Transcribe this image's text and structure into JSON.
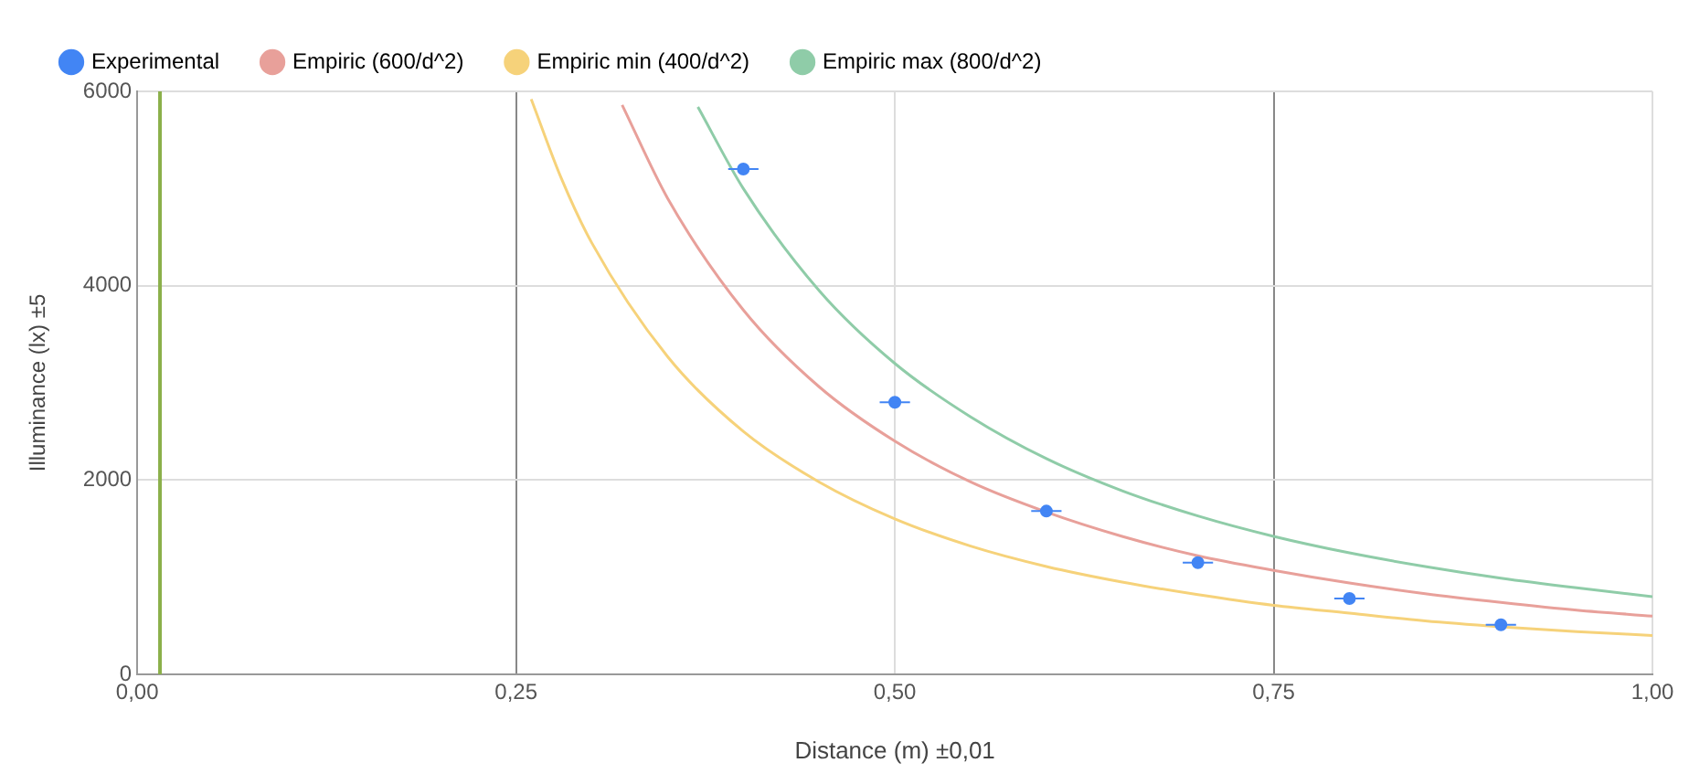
{
  "chart_data": {
    "type": "scatter",
    "xlabel": "Distance (m) ±0,01",
    "ylabel": "Illuminance (lx) ±5",
    "legend": "top",
    "grid": true,
    "xlim": [
      0,
      1
    ],
    "xticks": [
      {
        "value": 0,
        "label": "0,00"
      },
      {
        "value": 0.25,
        "label": "0,25"
      },
      {
        "value": 0.5,
        "label": "0,50"
      },
      {
        "value": 0.75,
        "label": "0,75"
      },
      {
        "value": 1,
        "label": "1,00"
      }
    ],
    "ylim": [
      0,
      6000
    ],
    "yticks": [
      0,
      2000,
      4000,
      6000
    ],
    "ref_lines": [
      {
        "axis": "x",
        "value": 0.015,
        "color": "#8bb04a"
      }
    ],
    "series": [
      {
        "name": "Experimental",
        "color": "#4285f4",
        "marker": "circle",
        "x": [
          0.4,
          0.5,
          0.6,
          0.7,
          0.8,
          0.9
        ],
        "values": [
          5200,
          2800,
          1680,
          1150,
          780,
          510
        ],
        "xerrors": [
          0.01,
          0.01,
          0.01,
          0.01,
          0.01,
          0.01
        ]
      },
      {
        "name": "Empiric (600/d^2)",
        "type": "line",
        "color": "#e8a09a",
        "marker": "none",
        "x": [
          0.32,
          0.35,
          0.4,
          0.45,
          0.5,
          0.55,
          0.6,
          0.65,
          0.7,
          0.75,
          0.8,
          0.85,
          0.9,
          0.95,
          1.0
        ],
        "values": [
          5860,
          4900,
          3750,
          2960,
          2400,
          1980,
          1670,
          1420,
          1220,
          1070,
          940,
          830,
          740,
          660,
          600
        ]
      },
      {
        "name": "Empiric min (400/d^2)",
        "type": "line",
        "color": "#f6d27a",
        "marker": "none",
        "x": [
          0.26,
          0.28,
          0.3,
          0.35,
          0.4,
          0.45,
          0.5,
          0.55,
          0.6,
          0.65,
          0.7,
          0.75,
          0.8,
          0.85,
          0.9,
          0.95,
          1.0
        ],
        "values": [
          5920,
          5100,
          4440,
          3270,
          2500,
          1980,
          1600,
          1320,
          1110,
          950,
          820,
          710,
          630,
          550,
          490,
          440,
          400
        ]
      },
      {
        "name": "Empiric max (800/d^2)",
        "type": "line",
        "color": "#8fcca8",
        "marker": "none",
        "x": [
          0.37,
          0.4,
          0.45,
          0.5,
          0.55,
          0.6,
          0.65,
          0.7,
          0.75,
          0.8,
          0.85,
          0.9,
          0.95,
          1.0
        ],
        "values": [
          5840,
          5000,
          3950,
          3200,
          2650,
          2220,
          1890,
          1630,
          1420,
          1250,
          1110,
          990,
          890,
          800
        ]
      }
    ]
  }
}
